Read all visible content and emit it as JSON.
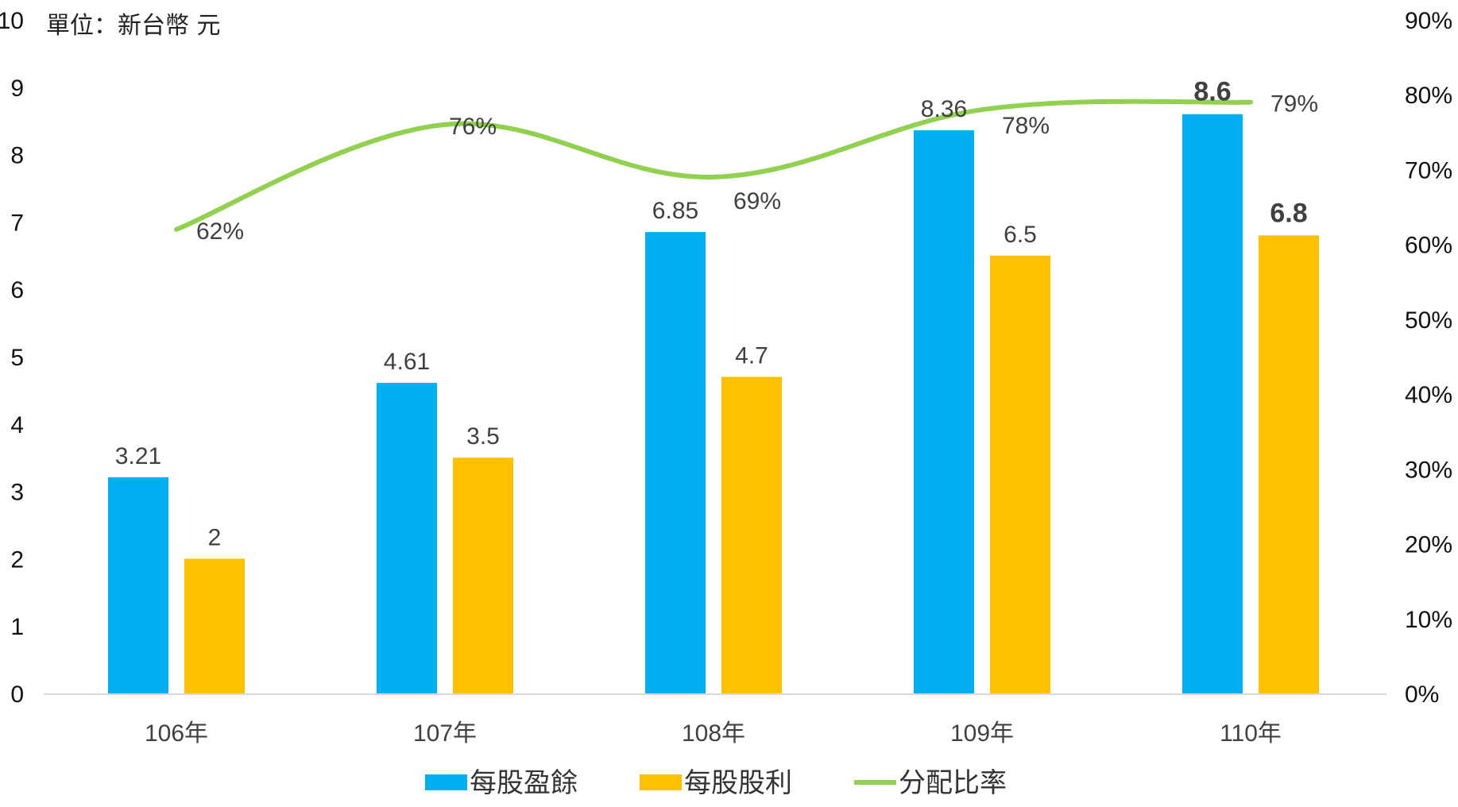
{
  "chart_data": {
    "type": "bar",
    "unit_label": "單位：新台幣 元",
    "categories": [
      "106年",
      "107年",
      "108年",
      "109年",
      "110年"
    ],
    "series": [
      {
        "name": "每股盈餘",
        "kind": "bar",
        "axis": "left",
        "color": "#00B0F0",
        "values": [
          3.21,
          4.61,
          6.85,
          8.36,
          8.6
        ],
        "labels": [
          "3.21",
          "4.61",
          "6.85",
          "8.36",
          "8.6"
        ],
        "bold_labels": [
          false,
          false,
          false,
          false,
          true
        ]
      },
      {
        "name": "每股股利",
        "kind": "bar",
        "axis": "left",
        "color": "#FFC000",
        "values": [
          2,
          3.5,
          4.7,
          6.5,
          6.8
        ],
        "labels": [
          "2",
          "3.5",
          "4.7",
          "6.5",
          "6.8"
        ],
        "bold_labels": [
          false,
          false,
          false,
          false,
          true
        ]
      },
      {
        "name": "分配比率",
        "kind": "line",
        "axis": "right",
        "color": "#92D050",
        "values": [
          62,
          76,
          69,
          78,
          79
        ],
        "labels": [
          "62%",
          "76%",
          "69%",
          "78%",
          "79%"
        ]
      }
    ],
    "y_left": {
      "min": 0,
      "max": 10,
      "ticks": [
        "0",
        "1",
        "2",
        "3",
        "4",
        "5",
        "6",
        "7",
        "8",
        "9",
        "10"
      ]
    },
    "y_right": {
      "min": 0,
      "max": 90,
      "ticks": [
        "0%",
        "10%",
        "20%",
        "30%",
        "40%",
        "50%",
        "60%",
        "70%",
        "80%",
        "90%"
      ]
    },
    "grid": false,
    "legend_position": "bottom"
  }
}
